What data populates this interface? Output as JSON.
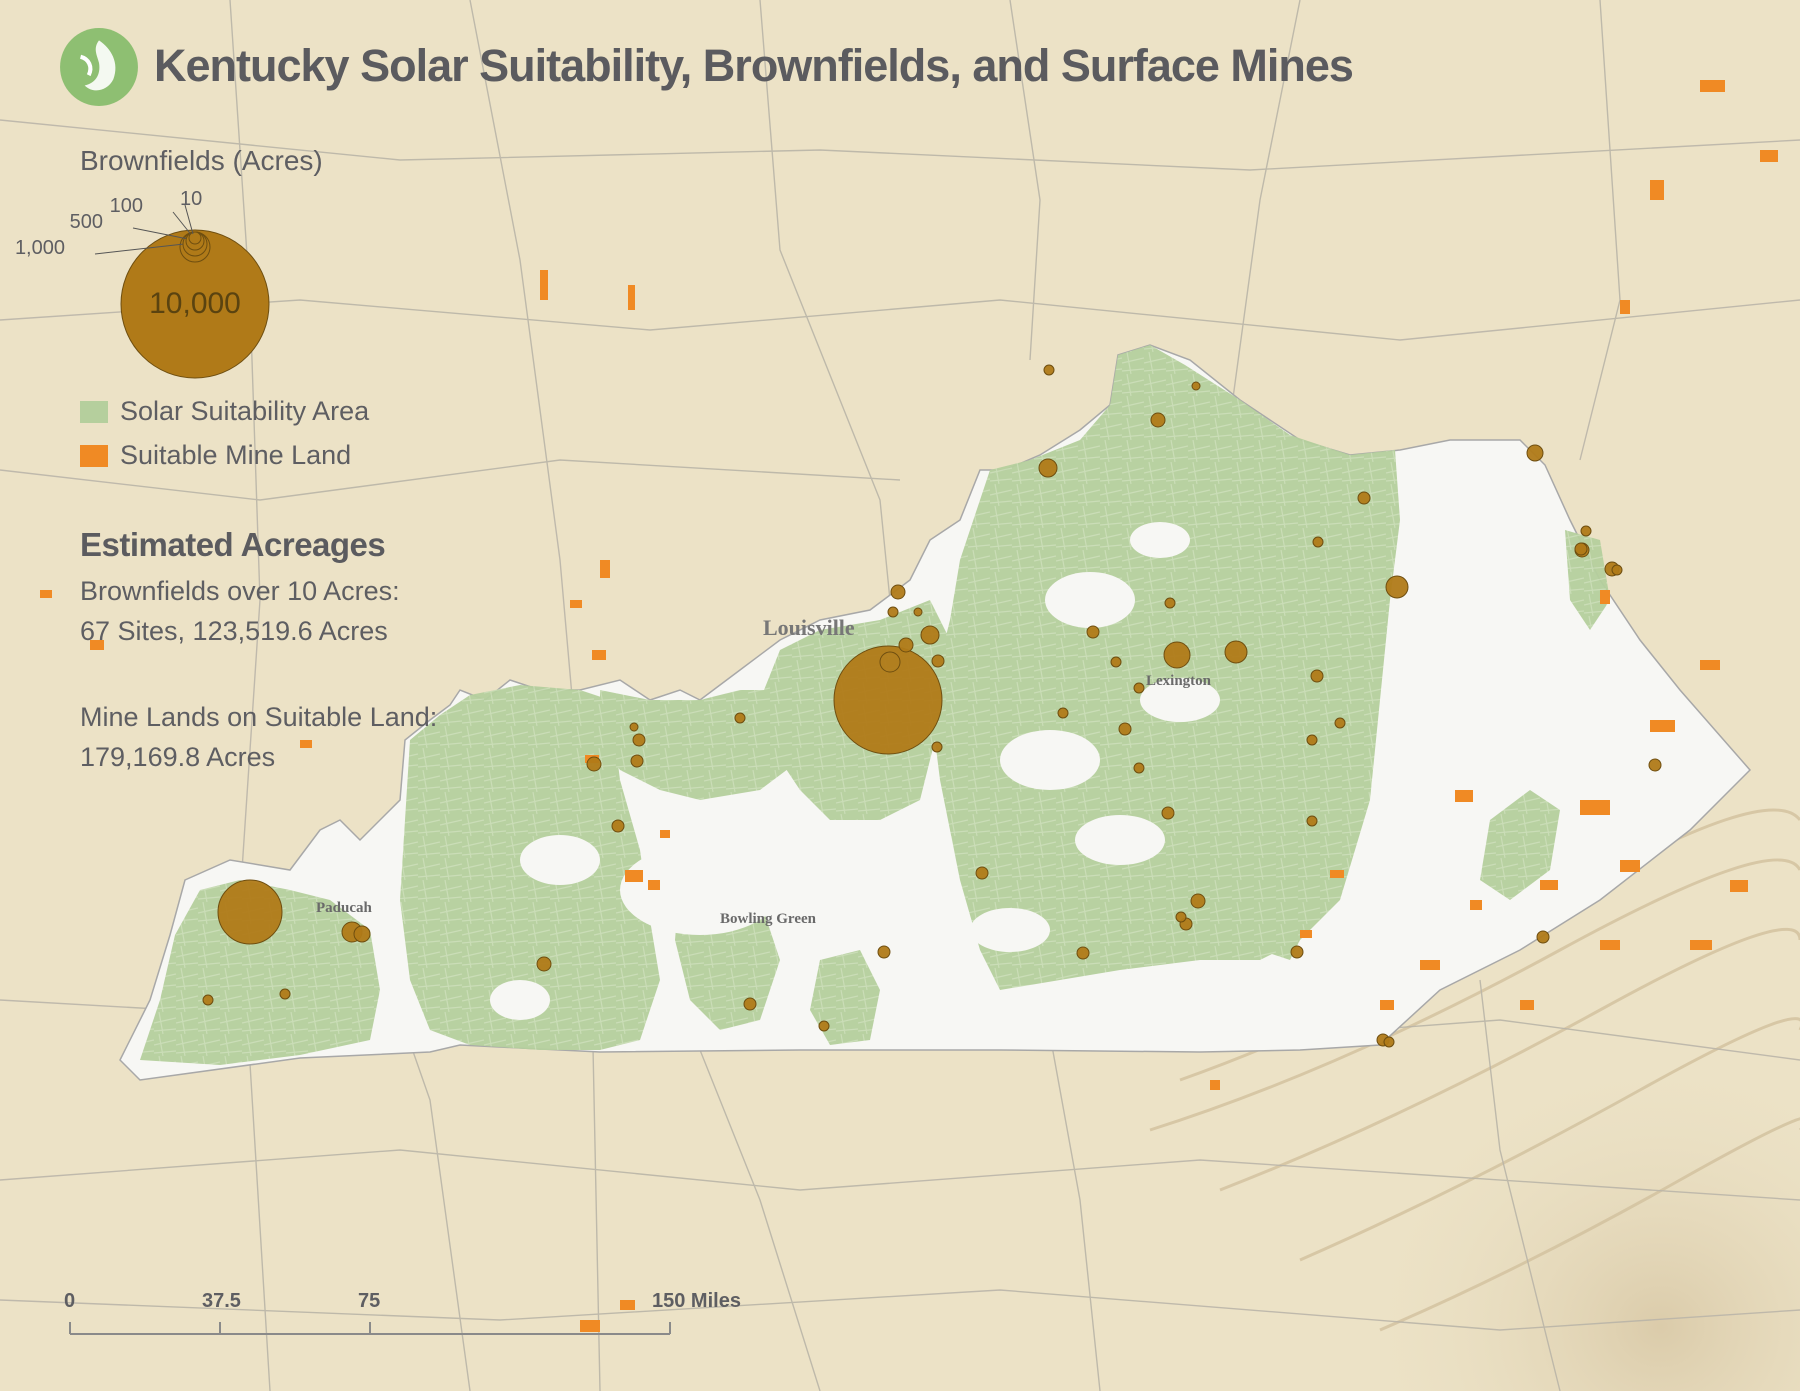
{
  "map": {
    "title": "Kentucky Solar Suitability, Brownfields, and Surface Mines",
    "region": "Kentucky",
    "colors": {
      "background": "#ece2c6",
      "state": "#f7f7f4",
      "solar": "#b5cf9d",
      "mine": "#f08a24",
      "brownfield": "#b07a18",
      "roads": "#b9b4a8",
      "text": "#5b5b5f"
    },
    "legend": {
      "brownfields_heading": "Brownfields (Acres)",
      "size_labels": [
        "10",
        "100",
        "500",
        "1,000",
        "10,000"
      ],
      "size_values": [
        10,
        100,
        500,
        1000,
        10000
      ],
      "solar_label": "Solar Suitability Area",
      "mine_label": "Suitable Mine Land"
    },
    "estimates": {
      "heading": "Estimated Acreages",
      "brownfields_line1": "Brownfields over 10 Acres:",
      "brownfields_line2": "67 Sites, 123,519.6 Acres",
      "mines_line1": "Mine Lands on Suitable Land:",
      "mines_line2": "179,169.8 Acres"
    },
    "cities": {
      "louisville": "Louisville",
      "lexington": "Lexington",
      "paducah": "Paducah",
      "bowling_green": "Bowling Green"
    },
    "scale_bar": {
      "labels": [
        "0",
        "37.5",
        "75",
        "150 Miles"
      ],
      "values_miles": [
        0,
        37.5,
        75,
        150
      ]
    }
  }
}
